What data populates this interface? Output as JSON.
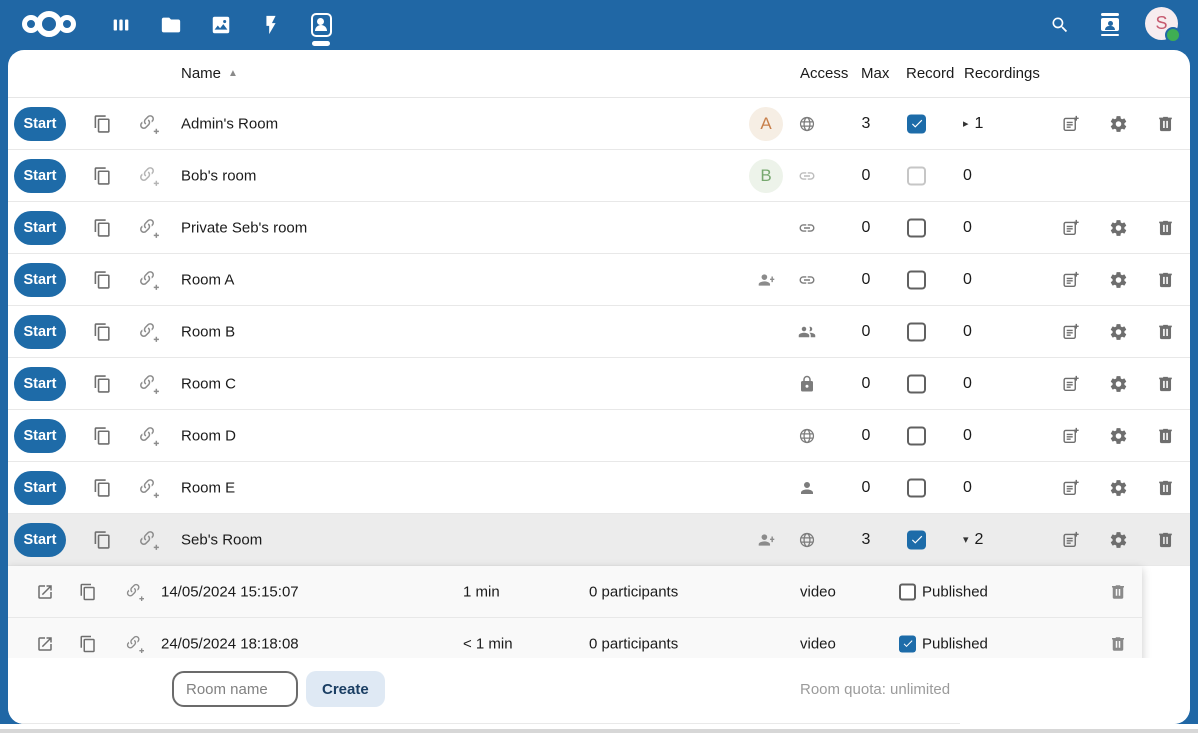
{
  "topbar": {
    "avatar_initial": "S",
    "avatar_bg": "#f7ecef",
    "avatar_color": "#c65a70",
    "status_color": "#3fae53",
    "bar_color": "#2067a5"
  },
  "table": {
    "headers": {
      "name": "Name",
      "access": "Access",
      "max": "Max",
      "record": "Record",
      "recordings": "Recordings"
    },
    "sort_indicator": "▲",
    "start_label": "Start",
    "expand_collapsed_glyph": "▸",
    "expand_expanded_glyph": "▾",
    "rows": [
      {
        "name": "Admin's Room",
        "avatar_initial": "A",
        "avatar_bg": "#f6eee4",
        "avatar_color": "#c8804c",
        "shared": false,
        "access": "globe",
        "max": "3",
        "record": true,
        "recordings": "1",
        "expand": "collapsed",
        "actions": true,
        "muted": false,
        "selected": false
      },
      {
        "name": "Bob's room",
        "avatar_initial": "B",
        "avatar_bg": "#edf3ea",
        "avatar_color": "#77a86f",
        "shared": false,
        "access": "link",
        "max": "0",
        "record": false,
        "recordings": "0",
        "expand": "none",
        "actions": false,
        "muted": true,
        "selected": false
      },
      {
        "name": "Private Seb's room",
        "avatar_initial": "",
        "shared": false,
        "access": "link",
        "max": "0",
        "record": false,
        "recordings": "0",
        "expand": "none",
        "actions": true,
        "muted": false,
        "selected": false
      },
      {
        "name": "Room A",
        "avatar_initial": "",
        "shared": true,
        "access": "link",
        "max": "0",
        "record": false,
        "recordings": "0",
        "expand": "none",
        "actions": true,
        "muted": false,
        "selected": false
      },
      {
        "name": "Room B",
        "avatar_initial": "",
        "shared": false,
        "access": "group",
        "max": "0",
        "record": false,
        "recordings": "0",
        "expand": "none",
        "actions": true,
        "muted": false,
        "selected": false
      },
      {
        "name": "Room C",
        "avatar_initial": "",
        "shared": false,
        "access": "lock",
        "max": "0",
        "record": false,
        "recordings": "0",
        "expand": "none",
        "actions": true,
        "muted": false,
        "selected": false
      },
      {
        "name": "Room D",
        "avatar_initial": "",
        "shared": false,
        "access": "globe",
        "max": "0",
        "record": false,
        "recordings": "0",
        "expand": "none",
        "actions": true,
        "muted": false,
        "selected": false
      },
      {
        "name": "Room E",
        "avatar_initial": "",
        "shared": false,
        "access": "person",
        "max": "0",
        "record": false,
        "recordings": "0",
        "expand": "none",
        "actions": true,
        "muted": false,
        "selected": false
      },
      {
        "name": "Seb's Room",
        "avatar_initial": "",
        "shared": true,
        "access": "globe",
        "max": "3",
        "record": true,
        "recordings": "2",
        "expand": "expanded",
        "actions": true,
        "muted": false,
        "selected": true
      }
    ]
  },
  "recordings": [
    {
      "date": "14/05/2024 15:15:07",
      "duration": "1 min",
      "participants": "0 participants",
      "type": "video",
      "published": false,
      "published_label": "Published"
    },
    {
      "date": "24/05/2024 18:18:08",
      "duration": "< 1 min",
      "participants": "0 participants",
      "type": "video",
      "published": true,
      "published_label": "Published"
    }
  ],
  "footer": {
    "room_name_placeholder": "Room name",
    "create_label": "Create",
    "quota": "Room quota: unlimited"
  }
}
